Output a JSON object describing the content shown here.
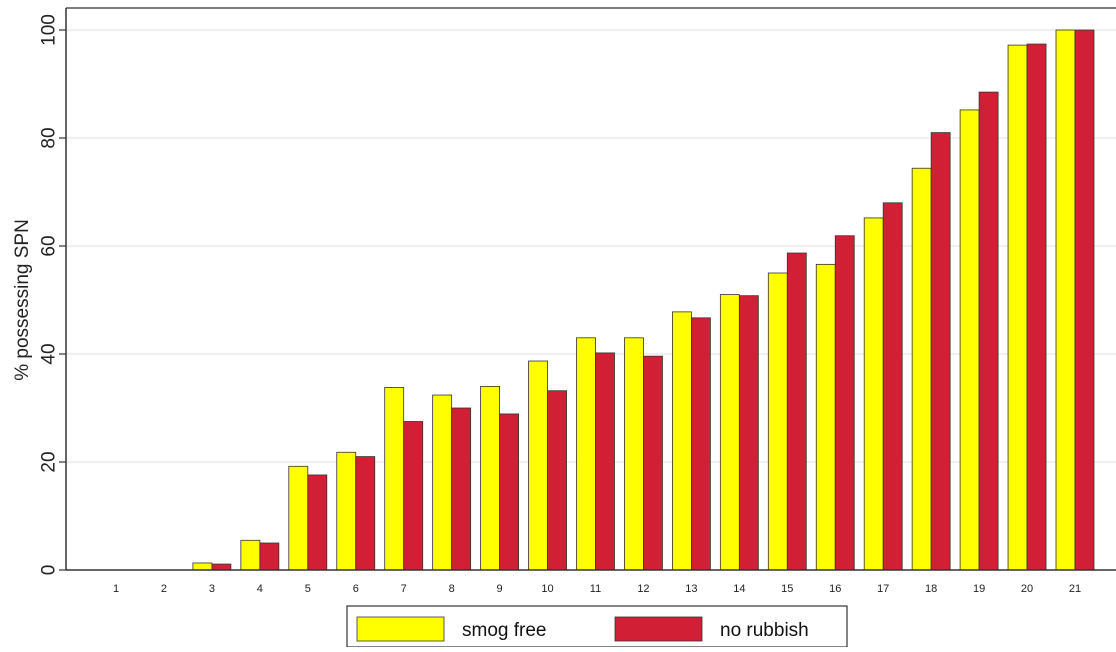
{
  "colors": {
    "plot_background": "#ffffff",
    "page_background": "#ffffff",
    "gridline": "#e6e6e6",
    "axis": "#333333",
    "bar_outline": "#333333"
  },
  "chart_data": {
    "type": "bar",
    "title": "",
    "xlabel": "",
    "ylabel": "% possessing SPN",
    "categories": [
      "1",
      "2",
      "3",
      "4",
      "5",
      "6",
      "7",
      "8",
      "9",
      "10",
      "11",
      "12",
      "13",
      "14",
      "15",
      "16",
      "17",
      "18",
      "19",
      "20",
      "21"
    ],
    "yticks": [
      0,
      20,
      40,
      60,
      80,
      100
    ],
    "ylim": [
      0,
      100
    ],
    "grid": true,
    "legend": {
      "position": "bottom"
    },
    "series": [
      {
        "name": "smog free",
        "color": "#ffff00",
        "values": [
          0,
          0,
          1.3,
          5.5,
          19.2,
          21.8,
          33.8,
          32.4,
          34,
          38.7,
          43,
          43,
          47.8,
          51,
          55,
          56.6,
          65.2,
          74.4,
          85.2,
          97.2,
          100
        ]
      },
      {
        "name": "no rubbish",
        "color": "#d12035",
        "values": [
          0,
          0,
          1.1,
          5,
          17.6,
          21,
          27.5,
          30,
          28.9,
          33.2,
          40.2,
          39.6,
          46.7,
          50.8,
          58.7,
          61.9,
          68,
          81,
          88.5,
          97.4,
          100
        ]
      }
    ]
  }
}
